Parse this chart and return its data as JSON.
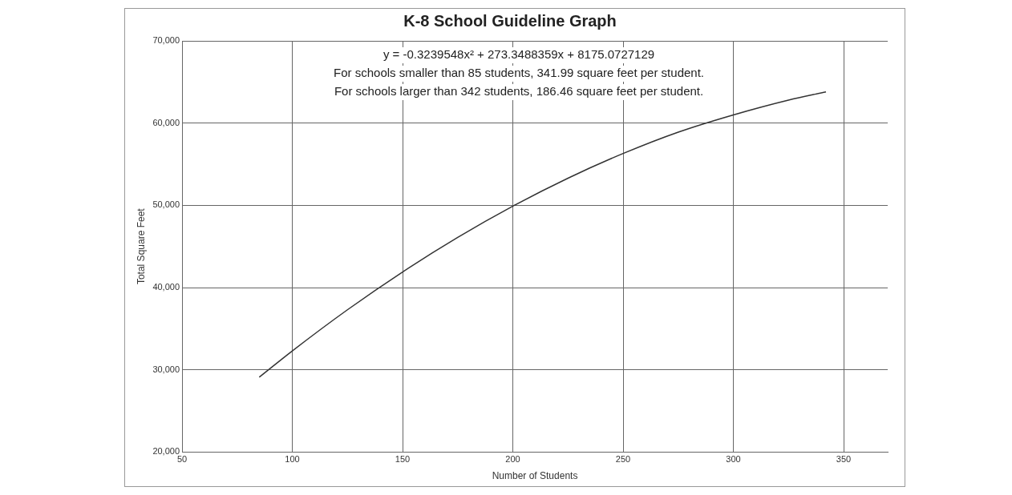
{
  "chart_data": {
    "type": "line",
    "title": "K-8 School Guideline Graph",
    "xlabel": "Number of Students",
    "ylabel": "Total Square Feet",
    "x": [
      85,
      100,
      125,
      150,
      175,
      200,
      225,
      250,
      275,
      300,
      325,
      342
    ],
    "series": [
      {
        "color": "#333333",
        "values": [
          29100,
          32300,
          37300,
          41900,
          46100,
          49900,
          53300,
          56300,
          58900,
          61000,
          62800,
          63800
        ]
      }
    ],
    "xlim": [
      50,
      370
    ],
    "xticks": [
      50,
      100,
      150,
      200,
      250,
      300,
      350
    ],
    "ylim": [
      20000,
      70000
    ],
    "yticks": [
      {
        "value": 20000,
        "label": "20,000"
      },
      {
        "value": 30000,
        "label": "30,000"
      },
      {
        "value": 40000,
        "label": "40,000"
      },
      {
        "value": 50000,
        "label": "50,000"
      },
      {
        "value": 60000,
        "label": "60,000"
      },
      {
        "value": 70000,
        "label": "70,000"
      }
    ],
    "grid": true,
    "legend": false,
    "marker": "none",
    "line_style": "solid",
    "annotations": [
      "y = -0.3239548x² + 273.3488359x + 8175.0727129",
      "For schools smaller than 85 students, 341.99 square feet per student.",
      "For schools larger than 342 students, 186.46 square feet per student."
    ]
  }
}
